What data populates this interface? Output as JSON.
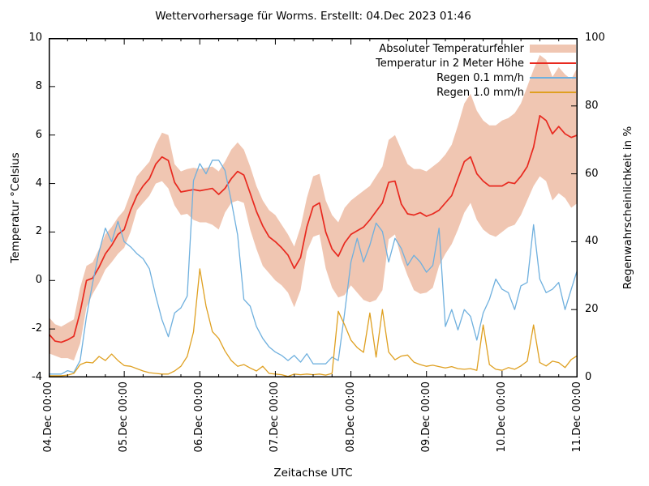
{
  "chart_data": {
    "type": "line",
    "title": "Wettervorhersage für Worms. Erstellt: 04.Dec 2023 01:46",
    "xlabel": "Zeitachse UTC",
    "ylabel": "Temperatur °Celsius",
    "y2label": "Regenwahrscheinlichkeit in %",
    "grid": false,
    "legend_position": "top-right-inside",
    "x_range_hours": [
      0,
      168
    ],
    "x_tick_labels": [
      "04.Dec 00:00",
      "05.Dec 00:00",
      "06.Dec 00:00",
      "07.Dec 00:00",
      "08.Dec 00:00",
      "09.Dec 00:00",
      "10.Dec 00:00",
      "11.Dec 00:00"
    ],
    "x_tick_hours": [
      0,
      24,
      48,
      72,
      96,
      120,
      144,
      168
    ],
    "x_minor_tick_hours_step": 6,
    "ylim_left": [
      -4,
      10
    ],
    "yticks_left": [
      -4,
      -2,
      0,
      2,
      4,
      6,
      8,
      10
    ],
    "ylim_right": [
      0,
      100
    ],
    "yticks_right": [
      0,
      20,
      40,
      60,
      80,
      100
    ],
    "x_hours": [
      0,
      2,
      4,
      6,
      8,
      10,
      12,
      14,
      16,
      18,
      20,
      22,
      24,
      26,
      28,
      30,
      32,
      34,
      36,
      38,
      40,
      42,
      44,
      46,
      48,
      50,
      52,
      54,
      56,
      58,
      60,
      62,
      64,
      66,
      68,
      70,
      72,
      74,
      76,
      78,
      80,
      82,
      84,
      86,
      88,
      90,
      92,
      94,
      96,
      98,
      100,
      102,
      104,
      106,
      108,
      110,
      112,
      114,
      116,
      118,
      120,
      122,
      124,
      126,
      128,
      130,
      132,
      134,
      136,
      138,
      140,
      142,
      144,
      146,
      148,
      150,
      152,
      154,
      156,
      158,
      160,
      162,
      164,
      166,
      168
    ],
    "series": [
      {
        "name": "Absoluter Temperaturfehler",
        "type": "band",
        "axis": "left",
        "color": "#f0c6b2",
        "upper": [
          -1.5,
          -1.8,
          -1.9,
          -1.75,
          -1.6,
          -0.3,
          0.6,
          0.75,
          1.3,
          1.9,
          2.2,
          2.6,
          2.9,
          3.6,
          4.3,
          4.6,
          4.9,
          5.6,
          6.1,
          6.0,
          4.8,
          4.5,
          4.6,
          4.65,
          4.6,
          4.65,
          4.7,
          4.5,
          4.9,
          5.4,
          5.7,
          5.4,
          4.7,
          3.9,
          3.3,
          2.9,
          2.7,
          2.3,
          1.9,
          1.4,
          2.2,
          3.4,
          4.3,
          4.4,
          3.3,
          2.7,
          2.4,
          3.0,
          3.3,
          3.5,
          3.7,
          3.9,
          4.3,
          4.7,
          5.8,
          6.0,
          5.4,
          4.8,
          4.6,
          4.6,
          4.5,
          4.7,
          4.9,
          5.2,
          5.6,
          6.4,
          7.3,
          7.7,
          7.0,
          6.6,
          6.4,
          6.4,
          6.6,
          6.7,
          6.9,
          7.3,
          8.0,
          8.7,
          9.3,
          9.1,
          8.4,
          8.8,
          8.5,
          8.3,
          8.8
        ],
        "lower": [
          -3.0,
          -3.1,
          -3.2,
          -3.2,
          -3.3,
          -2.6,
          -1.1,
          -0.55,
          -0.1,
          0.45,
          0.75,
          1.1,
          1.35,
          2.0,
          2.9,
          3.2,
          3.5,
          4.0,
          4.1,
          3.8,
          3.1,
          2.7,
          2.75,
          2.5,
          2.4,
          2.4,
          2.3,
          2.1,
          2.8,
          3.2,
          3.3,
          3.2,
          2.1,
          1.3,
          0.6,
          0.3,
          0.0,
          -0.2,
          -0.5,
          -1.1,
          -0.4,
          1.2,
          1.8,
          1.9,
          0.5,
          -0.3,
          -0.7,
          -0.6,
          -0.2,
          -0.5,
          -0.8,
          -0.9,
          -0.8,
          -0.4,
          1.7,
          1.9,
          0.9,
          0.2,
          -0.4,
          -0.55,
          -0.5,
          -0.3,
          0.6,
          1.1,
          1.5,
          2.1,
          2.8,
          3.2,
          2.5,
          2.1,
          1.9,
          1.8,
          2.0,
          2.2,
          2.3,
          2.7,
          3.3,
          3.9,
          4.3,
          4.1,
          3.3,
          3.6,
          3.4,
          3.0,
          3.2
        ]
      },
      {
        "name": "Temperatur in 2 Meter Höhe",
        "type": "line",
        "axis": "left",
        "color": "#e8291f",
        "values": [
          -2.2,
          -2.5,
          -2.55,
          -2.45,
          -2.3,
          -1.3,
          0.0,
          0.1,
          0.55,
          1.1,
          1.45,
          1.9,
          2.1,
          2.9,
          3.5,
          3.9,
          4.2,
          4.8,
          5.1,
          4.95,
          4.05,
          3.65,
          3.7,
          3.75,
          3.7,
          3.75,
          3.8,
          3.55,
          3.8,
          4.2,
          4.5,
          4.35,
          3.6,
          2.85,
          2.25,
          1.8,
          1.6,
          1.35,
          1.05,
          0.5,
          0.95,
          2.2,
          3.05,
          3.2,
          2.0,
          1.3,
          1.0,
          1.55,
          1.9,
          2.05,
          2.2,
          2.5,
          2.85,
          3.2,
          4.05,
          4.1,
          3.15,
          2.75,
          2.7,
          2.8,
          2.65,
          2.75,
          2.9,
          3.2,
          3.5,
          4.2,
          4.9,
          5.1,
          4.4,
          4.1,
          3.9,
          3.9,
          3.9,
          4.05,
          4.0,
          4.3,
          4.7,
          5.5,
          6.8,
          6.6,
          6.05,
          6.35,
          6.05,
          5.9,
          6.0
        ]
      },
      {
        "name": "Regen 0.1 mm/h",
        "type": "line",
        "axis": "right",
        "color": "#6fb0de",
        "values": [
          1,
          1,
          1,
          2,
          1.5,
          5,
          18,
          28,
          37,
          44,
          40,
          46,
          40,
          38.5,
          36.5,
          35,
          32,
          24,
          17,
          12,
          19,
          20.5,
          24,
          58,
          63,
          60,
          64,
          64,
          61,
          52,
          42,
          23,
          21,
          15,
          11.5,
          9,
          7.5,
          6.5,
          5,
          6.5,
          4.5,
          7,
          4,
          4,
          4,
          6,
          5,
          19,
          34,
          41,
          34,
          39,
          45.5,
          43,
          34,
          41,
          38,
          33,
          36,
          34,
          31,
          33,
          44,
          15,
          20,
          14,
          20,
          18,
          11,
          19,
          23,
          29,
          26,
          25,
          20,
          27,
          28,
          45,
          29,
          25,
          26,
          28,
          20,
          26,
          32
        ]
      },
      {
        "name": "Regen 1.0 mm/h",
        "type": "line",
        "axis": "right",
        "color": "#dfa021",
        "values": [
          0.5,
          0.5,
          0.5,
          0.7,
          1.2,
          3.8,
          4.5,
          4.3,
          6.2,
          5,
          6.9,
          5,
          3.5,
          3.3,
          2.6,
          1.9,
          1.4,
          1.2,
          1,
          1,
          1.9,
          3.3,
          6.2,
          13.4,
          32,
          21,
          13.5,
          11.5,
          7.8,
          5,
          3.3,
          3.8,
          2.8,
          1.9,
          3.3,
          1.2,
          1,
          0.8,
          0.3,
          1,
          0.8,
          1,
          0.8,
          1,
          0.7,
          1.2,
          19.5,
          15.5,
          11,
          8.8,
          7.4,
          19,
          6,
          20,
          7.5,
          5.2,
          6.3,
          6.6,
          4.5,
          3.8,
          3.3,
          3.6,
          3.2,
          2.8,
          3.2,
          2.6,
          2.4,
          2.6,
          2.1,
          15.5,
          3.8,
          2.4,
          2.1,
          2.9,
          2.4,
          3.4,
          4.8,
          15.5,
          4.4,
          3.4,
          4.8,
          4.4,
          2.9,
          5.3,
          6.5
        ]
      }
    ]
  }
}
